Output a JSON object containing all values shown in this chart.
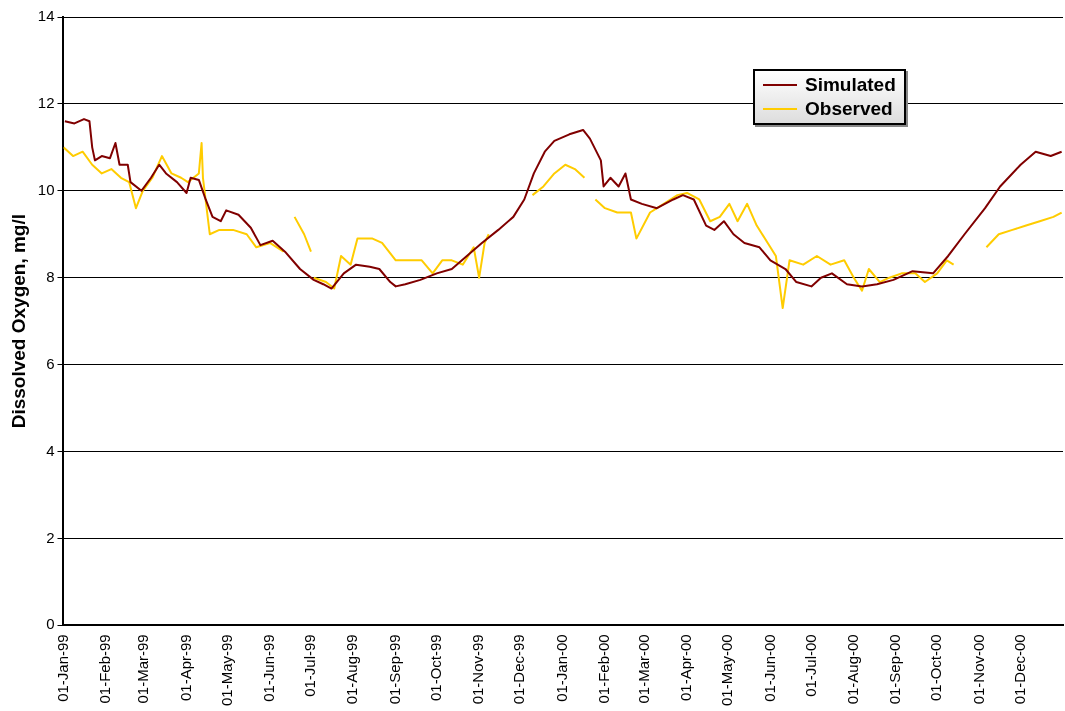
{
  "chart_data": {
    "type": "line",
    "ylabel": "Dissolved Oxygen, mg/l",
    "xlim": [
      "1999-01-01",
      "2001-01-01"
    ],
    "xticks": [
      {
        "value": "1999-01-01",
        "label": "01-Jan-99"
      },
      {
        "value": "1999-02-01",
        "label": "01-Feb-99"
      },
      {
        "value": "1999-03-01",
        "label": "01-Mar-99"
      },
      {
        "value": "1999-04-01",
        "label": "01-Apr-99"
      },
      {
        "value": "1999-05-01",
        "label": "01-May-99"
      },
      {
        "value": "1999-06-01",
        "label": "01-Jun-99"
      },
      {
        "value": "1999-07-01",
        "label": "01-Jul-99"
      },
      {
        "value": "1999-08-01",
        "label": "01-Aug-99"
      },
      {
        "value": "1999-09-01",
        "label": "01-Sep-99"
      },
      {
        "value": "1999-10-01",
        "label": "01-Oct-99"
      },
      {
        "value": "1999-11-01",
        "label": "01-Nov-99"
      },
      {
        "value": "1999-12-01",
        "label": "01-Dec-99"
      },
      {
        "value": "2000-01-01",
        "label": "01-Jan-00"
      },
      {
        "value": "2000-02-01",
        "label": "01-Feb-00"
      },
      {
        "value": "2000-03-01",
        "label": "01-Mar-00"
      },
      {
        "value": "2000-04-01",
        "label": "01-Apr-00"
      },
      {
        "value": "2000-05-01",
        "label": "01-May-00"
      },
      {
        "value": "2000-06-01",
        "label": "01-Jun-00"
      },
      {
        "value": "2000-07-01",
        "label": "01-Jul-00"
      },
      {
        "value": "2000-08-01",
        "label": "01-Aug-00"
      },
      {
        "value": "2000-09-01",
        "label": "01-Sep-00"
      },
      {
        "value": "2000-10-01",
        "label": "01-Oct-00"
      },
      {
        "value": "2000-11-01",
        "label": "01-Nov-00"
      },
      {
        "value": "2000-12-01",
        "label": "01-Dec-00"
      }
    ],
    "ylim": [
      0,
      14
    ],
    "yticks": [
      0,
      2,
      4,
      6,
      8,
      10,
      12,
      14
    ],
    "grid": "y",
    "legend": "top right",
    "marker": "none",
    "line_style": "solid",
    "series": [
      {
        "name": "Simulated",
        "color": "#800000",
        "x": [
          "1999-01-02",
          "1999-01-09",
          "1999-01-16",
          "1999-01-20",
          "1999-01-22",
          "1999-01-24",
          "1999-01-29",
          "1999-02-04",
          "1999-02-08",
          "1999-02-11",
          "1999-02-17",
          "1999-02-19",
          "1999-02-27",
          "1999-03-06",
          "1999-03-12",
          "1999-03-17",
          "1999-03-25",
          "1999-04-01",
          "1999-04-04",
          "1999-04-10",
          "1999-04-15",
          "1999-04-20",
          "1999-04-26",
          "1999-04-30",
          "1999-05-09",
          "1999-05-18",
          "1999-05-25",
          "1999-06-03",
          "1999-06-12",
          "1999-06-23",
          "1999-07-03",
          "1999-07-10",
          "1999-07-16",
          "1999-07-25",
          "1999-08-03",
          "1999-08-13",
          "1999-08-20",
          "1999-08-28",
          "1999-09-01",
          "1999-09-08",
          "1999-09-19",
          "1999-10-01",
          "1999-10-12",
          "1999-10-23",
          "1999-11-03",
          "1999-11-15",
          "1999-11-26",
          "1999-12-04",
          "1999-12-11",
          "1999-12-19",
          "1999-12-26",
          "2000-01-06",
          "2000-01-16",
          "2000-01-21",
          "2000-01-29",
          "2000-01-31",
          "2000-02-05",
          "2000-02-11",
          "2000-02-16",
          "2000-02-20",
          "2000-02-28",
          "2000-03-10",
          "2000-03-22",
          "2000-03-29",
          "2000-04-06",
          "2000-04-15",
          "2000-04-21",
          "2000-04-28",
          "2000-05-05",
          "2000-05-13",
          "2000-05-24",
          "2000-06-01",
          "2000-06-12",
          "2000-06-20",
          "2000-07-01",
          "2000-07-08",
          "2000-07-16",
          "2000-07-27",
          "2000-08-07",
          "2000-08-18",
          "2000-08-30",
          "2000-09-13",
          "2000-09-28",
          "2000-10-09",
          "2000-10-21",
          "2000-11-05",
          "2000-11-16",
          "2000-12-01",
          "2000-12-12",
          "2000-12-23",
          "2000-12-31"
        ],
        "values": [
          11.6,
          11.55,
          11.65,
          11.6,
          11.0,
          10.7,
          10.8,
          10.75,
          11.1,
          10.6,
          10.6,
          10.2,
          10.0,
          10.3,
          10.6,
          10.4,
          10.2,
          9.95,
          10.3,
          10.25,
          9.8,
          9.4,
          9.3,
          9.55,
          9.45,
          9.15,
          8.75,
          8.85,
          8.6,
          8.2,
          7.95,
          7.85,
          7.75,
          8.1,
          8.3,
          8.25,
          8.2,
          7.9,
          7.8,
          7.85,
          7.95,
          8.1,
          8.2,
          8.5,
          8.8,
          9.1,
          9.4,
          9.8,
          10.4,
          10.9,
          11.15,
          11.3,
          11.4,
          11.2,
          10.7,
          10.1,
          10.3,
          10.1,
          10.4,
          9.8,
          9.7,
          9.6,
          9.8,
          9.9,
          9.8,
          9.2,
          9.1,
          9.3,
          9.0,
          8.8,
          8.7,
          8.4,
          8.2,
          7.9,
          7.8,
          8.0,
          8.1,
          7.85,
          7.8,
          7.85,
          7.95,
          8.15,
          8.1,
          8.5,
          9.0,
          9.6,
          10.1,
          10.6,
          10.9,
          10.8,
          10.9
        ]
      },
      {
        "name": "Observed",
        "color": "#ffcc00",
        "x": [
          "1999-01-01",
          "1999-01-08",
          "1999-01-15",
          "1999-01-22",
          "1999-01-29",
          "1999-02-05",
          "1999-02-12",
          "1999-02-18",
          "1999-02-23",
          "1999-02-28",
          "1999-03-07",
          "1999-03-14",
          "1999-03-21",
          "1999-03-28",
          "1999-04-02",
          "1999-04-10",
          "1999-04-12",
          "1999-04-13",
          "1999-04-18",
          "1999-04-25",
          "1999-05-05",
          "1999-05-15",
          "1999-05-22",
          "1999-06-01",
          "1999-06-11",
          "1999-06-15",
          "1999-06-19",
          "1999-06-26",
          "1999-07-01",
          "1999-07-02",
          "1999-07-03",
          "1999-07-12",
          "1999-07-18",
          "1999-07-23",
          "1999-07-30",
          "1999-08-04",
          "1999-08-15",
          "1999-08-22",
          "1999-09-01",
          "1999-09-10",
          "1999-09-20",
          "1999-09-28",
          "1999-10-05",
          "1999-10-12",
          "1999-10-20",
          "1999-10-28",
          "1999-11-01",
          "1999-11-05",
          "1999-11-08",
          "1999-11-25",
          "1999-12-10",
          "1999-12-18",
          "1999-12-26",
          "2000-01-03",
          "2000-01-10",
          "2000-01-17",
          "2000-01-21",
          "2000-01-25",
          "2000-02-01",
          "2000-02-10",
          "2000-02-20",
          "2000-02-24",
          "2000-03-05",
          "2000-03-15",
          "2000-03-25",
          "2000-04-01",
          "2000-04-10",
          "2000-04-18",
          "2000-04-25",
          "2000-05-02",
          "2000-05-08",
          "2000-05-15",
          "2000-05-22",
          "2000-06-01",
          "2000-06-05",
          "2000-06-10",
          "2000-06-15",
          "2000-06-25",
          "2000-07-05",
          "2000-07-15",
          "2000-07-25",
          "2000-08-01",
          "2000-08-07",
          "2000-08-12",
          "2000-08-20",
          "2000-08-27",
          "2000-09-05",
          "2000-09-15",
          "2000-09-22",
          "2000-10-01",
          "2000-10-08",
          "2000-10-13",
          "2000-10-25",
          "2000-11-06",
          "2000-11-15",
          "2000-11-25",
          "2000-12-05",
          "2000-12-15",
          "2000-12-25",
          "2000-12-31"
        ],
        "values": [
          11.0,
          10.8,
          10.9,
          10.6,
          10.4,
          10.5,
          10.3,
          10.2,
          9.6,
          10.0,
          10.3,
          10.8,
          10.4,
          10.3,
          10.2,
          10.4,
          11.1,
          10.3,
          9.0,
          9.1,
          9.1,
          9.0,
          8.7,
          8.8,
          8.6,
          null,
          9.4,
          9.0,
          8.6,
          null,
          8.0,
          7.9,
          7.75,
          8.5,
          8.3,
          8.9,
          8.9,
          8.8,
          8.4,
          8.4,
          8.4,
          8.1,
          8.4,
          8.4,
          8.3,
          8.7,
          8.0,
          8.8,
          9.0,
          null,
          9.9,
          10.1,
          10.4,
          10.6,
          10.5,
          10.3,
          null,
          9.8,
          9.6,
          9.5,
          9.5,
          8.9,
          9.5,
          9.7,
          9.9,
          9.95,
          9.8,
          9.3,
          9.4,
          9.7,
          9.3,
          9.7,
          9.2,
          8.7,
          8.5,
          7.3,
          8.4,
          8.3,
          8.5,
          8.3,
          8.4,
          8.0,
          7.7,
          8.2,
          7.9,
          8.0,
          8.1,
          8.1,
          7.9,
          8.1,
          8.4,
          8.3,
          null,
          8.7,
          9.0,
          9.1,
          9.2,
          9.3,
          9.4,
          9.5
        ]
      }
    ]
  }
}
